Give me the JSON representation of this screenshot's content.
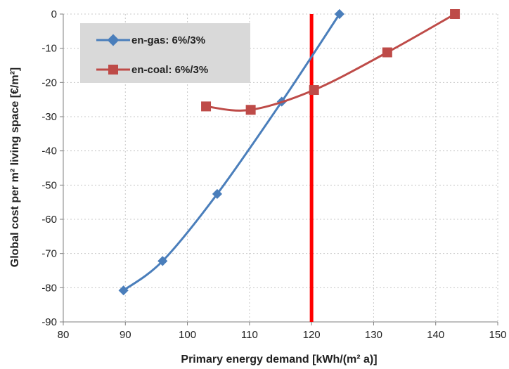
{
  "chart_data": {
    "type": "line",
    "xlabel": "Primary energy demand [kWh/(m² a)]",
    "ylabel": "Global cost per m² living space [€/m²]",
    "xlim": [
      80,
      150
    ],
    "ylim": [
      -90,
      0
    ],
    "x_ticks": [
      80,
      90,
      100,
      110,
      120,
      130,
      140,
      150
    ],
    "y_ticks": [
      0,
      -10,
      -20,
      -30,
      -40,
      -50,
      -60,
      -70,
      -80,
      -90
    ],
    "x_tick_labels": [
      "80",
      "90",
      "100",
      "110",
      "120",
      "130",
      "140",
      "150"
    ],
    "y_tick_labels": [
      "0",
      "-10",
      "-20",
      "-30",
      "-40",
      "-50",
      "-60",
      "-70",
      "-80",
      "-90"
    ],
    "grid": true,
    "legend_position": "top-left",
    "series": [
      {
        "name": "en-gas: 6%/3%",
        "color": "#4a7ebb",
        "marker": "diamond",
        "points": [
          [
            89.7,
            -80.8
          ],
          [
            96,
            -72.2
          ],
          [
            104.8,
            -52.6
          ],
          [
            115.2,
            -25.6
          ],
          [
            124.5,
            0
          ]
        ]
      },
      {
        "name": "en-coal: 6%/3%",
        "color": "#be4b48",
        "marker": "square",
        "points": [
          [
            103,
            -27
          ],
          [
            110.2,
            -28
          ],
          [
            120.4,
            -22.2
          ],
          [
            132.2,
            -11.2
          ],
          [
            143.1,
            0
          ]
        ]
      }
    ],
    "reference_line": {
      "x": 120,
      "color": "#ff0000"
    }
  }
}
